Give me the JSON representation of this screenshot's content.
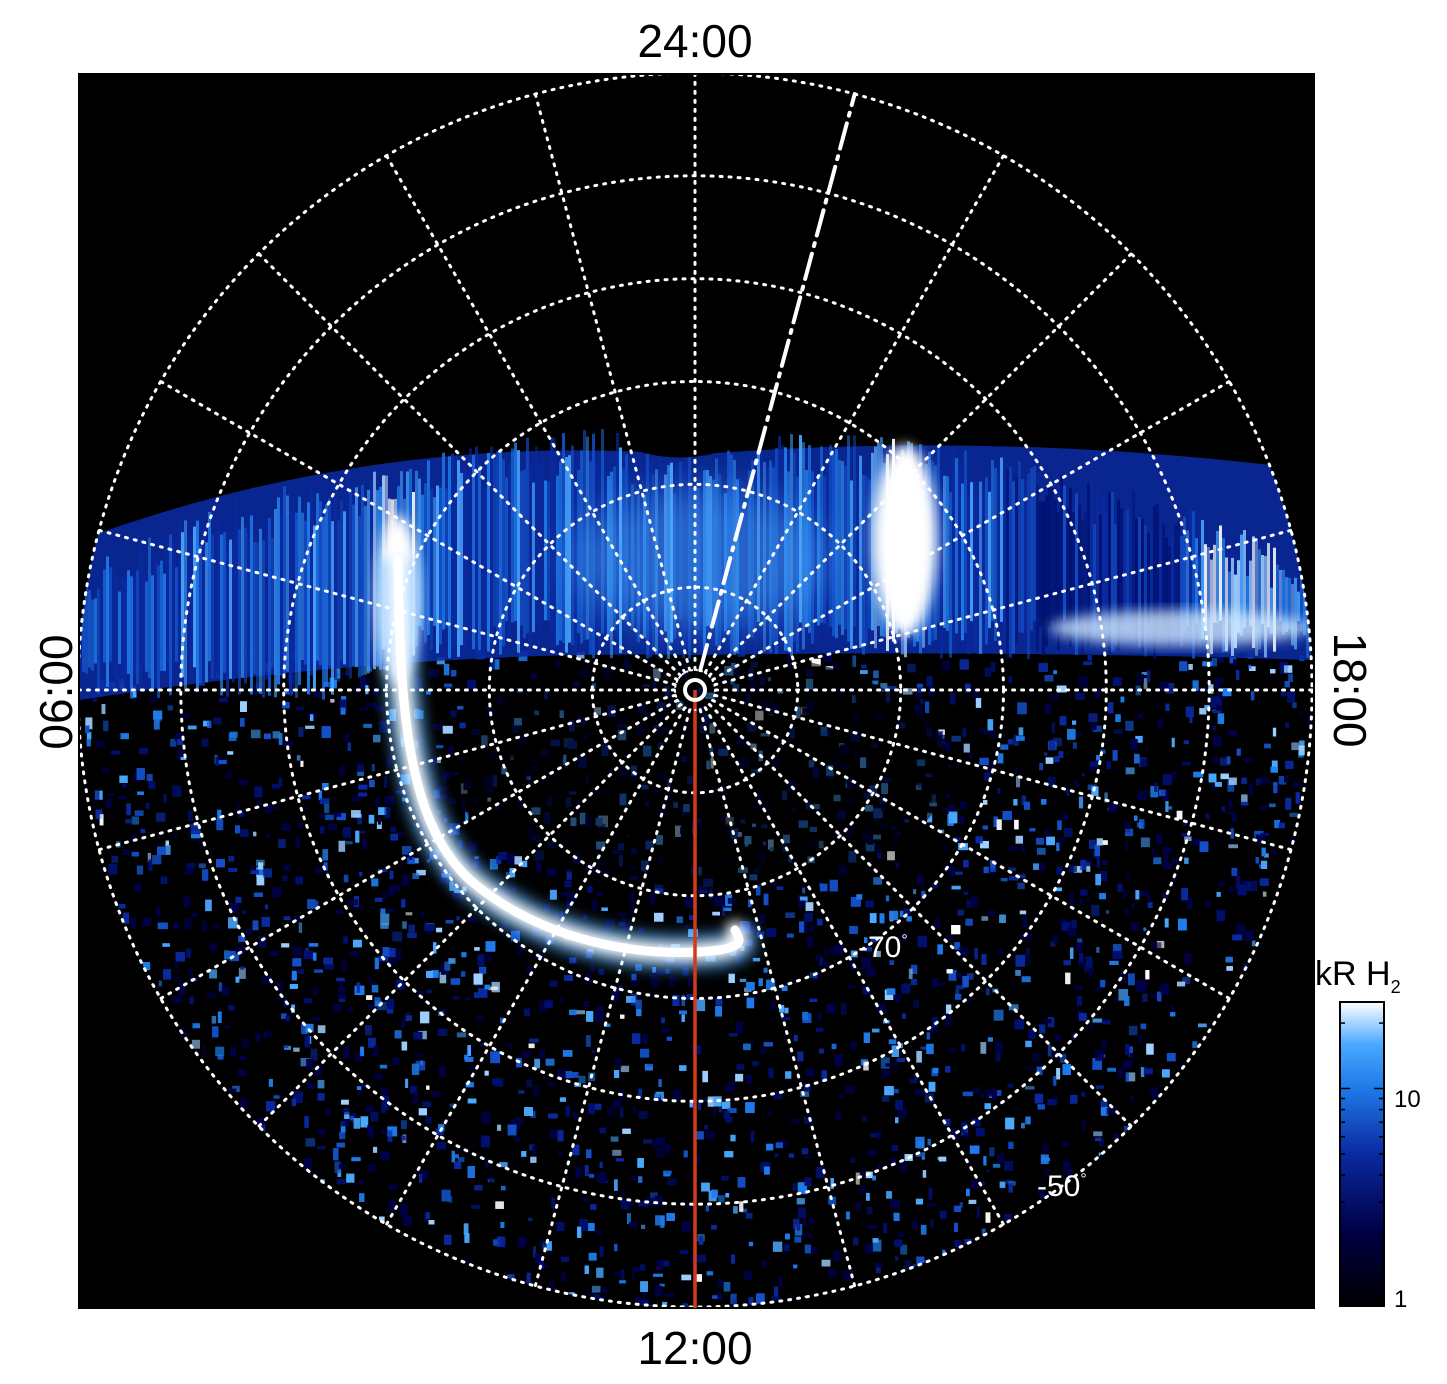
{
  "chart_data": {
    "type": "heatmap",
    "projection": "polar",
    "hemisphere": "south",
    "local_time_labels": {
      "top": "24:00",
      "bottom": "12:00",
      "left": "06:00",
      "right": "18:00"
    },
    "latitude_labels": [
      {
        "text": "-70",
        "unit": "°",
        "latitude": -70
      },
      {
        "text": "-50",
        "unit": "°",
        "latitude": -50
      }
    ],
    "grid": {
      "latitude_circles_deg": [
        -80,
        -70,
        -60,
        -50,
        -40,
        -30
      ],
      "meridian_spacing_hours": 1,
      "style": "dotted",
      "color": "#ffffff"
    },
    "colorbar": {
      "title_main": "kR H",
      "title_subscript": "2",
      "scale": "log",
      "range": [
        1,
        25
      ],
      "ticks": [
        {
          "value": 1,
          "label": "1"
        },
        {
          "value": 10,
          "label": "10"
        }
      ],
      "colors": [
        "#000000",
        "#000046",
        "#0a2aa0",
        "#1f7bea",
        "#4aa8ff",
        "#ffffff"
      ]
    },
    "features": {
      "main_oval": "bright arc from ~07:00 through 12:00 at about -70° latitude",
      "dawn_dusk_band": "bright emission band near 06:00–18:00 meridian, brightest near 06:30 and 20:00",
      "noon_meridian_color": "#d43a1a",
      "dashed_meridian_hour": 23
    }
  }
}
